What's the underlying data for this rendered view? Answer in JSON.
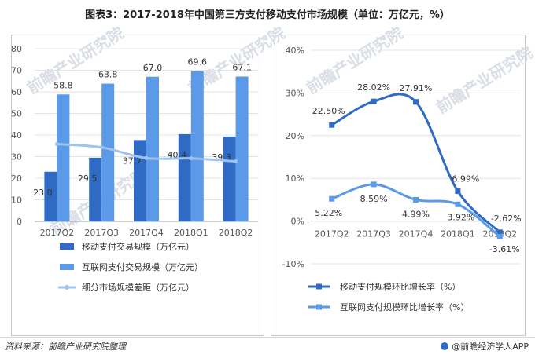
{
  "title": "图表3：2017-2018年中国第三方支付移动支付市场规模（单位：万亿元，%）",
  "footer": {
    "source": "资料来源：前瞻产业研究院整理",
    "brand": "@前瞻经济学人APP"
  },
  "watermark": "前瞻产业研究院",
  "colors": {
    "mobile": "#2f6bc5",
    "internet": "#5b9ae8",
    "gap": "#9ec3ef",
    "grid": "#e4e4e4"
  },
  "chart_data": [
    {
      "type": "bar",
      "categories": [
        "2017Q2",
        "2017Q3",
        "2017Q4",
        "2018Q1",
        "2018Q2"
      ],
      "ylim": [
        0,
        80
      ],
      "yticks": [
        "0",
        "10",
        "20",
        "30",
        "40",
        "50",
        "60",
        "70",
        "80"
      ],
      "series": [
        {
          "name": "移动支付交易规模（万亿元）",
          "kind": "bar",
          "values": [
            23.0,
            29.5,
            37.7,
            40.4,
            39.3
          ],
          "labels": [
            "23.0",
            "29.5",
            "37.7",
            "40.4",
            "39.3"
          ]
        },
        {
          "name": "互联网支付交易规模（万亿元）",
          "kind": "bar",
          "values": [
            58.8,
            63.8,
            67.0,
            69.6,
            67.1
          ],
          "labels": [
            "58.8",
            "63.8",
            "67.0",
            "69.6",
            "67.1"
          ]
        },
        {
          "name": "细分市场规模差距（万亿元）",
          "kind": "line",
          "values": [
            35.8,
            34.3,
            29.3,
            29.2,
            27.8
          ]
        }
      ],
      "legend_position": "bottom"
    },
    {
      "type": "line",
      "categories": [
        "2017Q2",
        "2017Q3",
        "2017Q4",
        "2018Q1",
        "2018Q2"
      ],
      "ylim": [
        -10,
        40
      ],
      "yticks": [
        "-10%",
        "0%",
        "10%",
        "20%",
        "30%",
        "40%"
      ],
      "series": [
        {
          "name": "移动支付规模环比增长率（%）",
          "values": [
            22.5,
            28.02,
            27.91,
            6.99,
            -2.62
          ],
          "labels": [
            "22.50%",
            "28.02%",
            "27.91%",
            "6.99%",
            "-2.62%"
          ]
        },
        {
          "name": "互联网支付规模环比增长率（%）",
          "values": [
            5.22,
            8.59,
            4.99,
            3.92,
            -3.61
          ],
          "labels": [
            "5.22%",
            "8.59%",
            "4.99%",
            "3.92%",
            "-3.61%"
          ]
        }
      ],
      "legend_position": "bottom"
    }
  ]
}
